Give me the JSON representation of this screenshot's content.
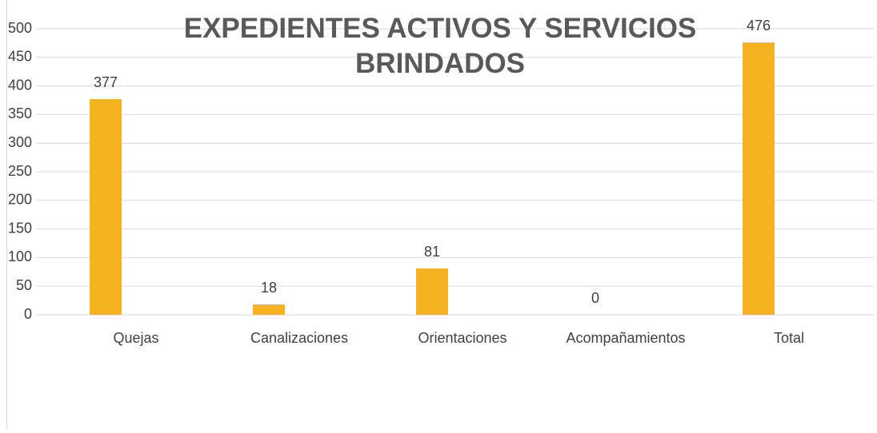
{
  "chart_data": {
    "type": "bar",
    "title": "EXPEDIENTES ACTIVOS Y SERVICIOS BRINDADOS",
    "categories": [
      "Quejas",
      "Canalizaciones",
      "Orientaciones",
      "Acompañamientos",
      "Total"
    ],
    "values": [
      377,
      18,
      81,
      0,
      476
    ],
    "color": "#f6b120",
    "ylim": [
      0,
      500
    ],
    "yticks": [
      0,
      50,
      100,
      150,
      200,
      250,
      300,
      350,
      400,
      450,
      500
    ],
    "grid": true
  }
}
